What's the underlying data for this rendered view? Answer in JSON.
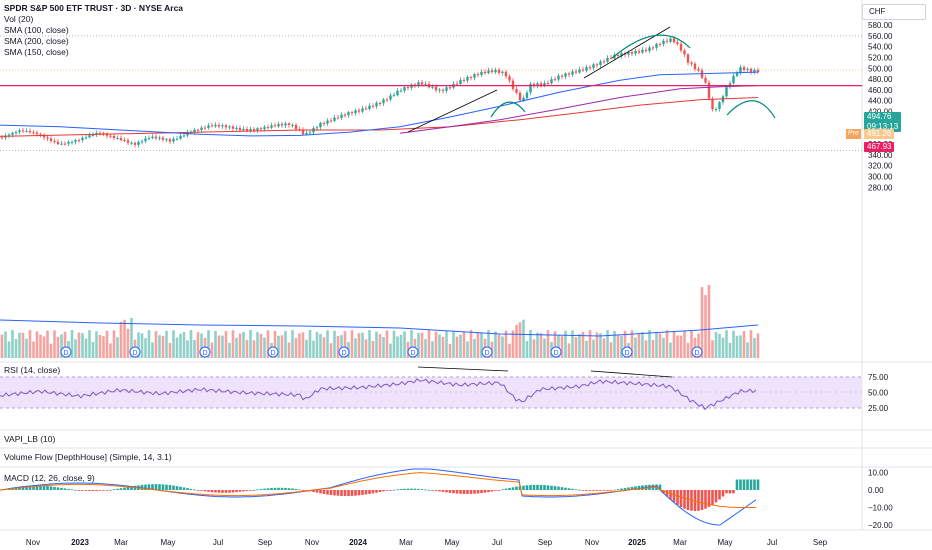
{
  "legend": {
    "title": "SPDR S&P 500 ETF TRUST · 3D · NYSE Arca",
    "vol": "Vol (20)",
    "sma100": "SMA (100, close)",
    "sma200": "SMA (200, close)",
    "sma150": "SMA (150, close)"
  },
  "currency": "CHF",
  "price_axis": [
    "580.00",
    "560.00",
    "540.00",
    "520.00",
    "500.00",
    "480.00",
    "460.00",
    "440.00",
    "420.00",
    "400.00",
    "380.00",
    "360.00",
    "340.00",
    "320.00",
    "300.00",
    "280.00"
  ],
  "last_price": "494.76",
  "countdown": "09:13:13",
  "pre_label": "Pre",
  "pre_price": "491.26",
  "hline_price": "467.93",
  "rsi": {
    "label": "RSI (14, close)",
    "axis": [
      "75.00",
      "50.00",
      "25.00"
    ]
  },
  "vapi_label": "VAPI_LB (10)",
  "volflow_label": "Volume Flow [DepthHouse] (Simple, 14, 3.1)",
  "macd": {
    "label": "MACD (12, 26, close, 9)",
    "axis": [
      "10.00",
      "0.00",
      "−10.00",
      "−20.00"
    ]
  },
  "time_axis": [
    "Nov",
    "2023",
    "Mar",
    "May",
    "Jul",
    "Sep",
    "Nov",
    "2024",
    "Mar",
    "May",
    "Jul",
    "Sep",
    "Nov",
    "2025",
    "Mar",
    "May",
    "Jul",
    "Sep"
  ],
  "dividend_marker": "D",
  "colors": {
    "up": "#26a69a",
    "down": "#ef5350",
    "sma100": "#2962ff",
    "sma200": "#e53935",
    "sma150": "#9c27b0",
    "rsi": "#7e57c2",
    "hline": "#e91e63",
    "annotation": "#00897b",
    "trendline": "#000000"
  }
}
